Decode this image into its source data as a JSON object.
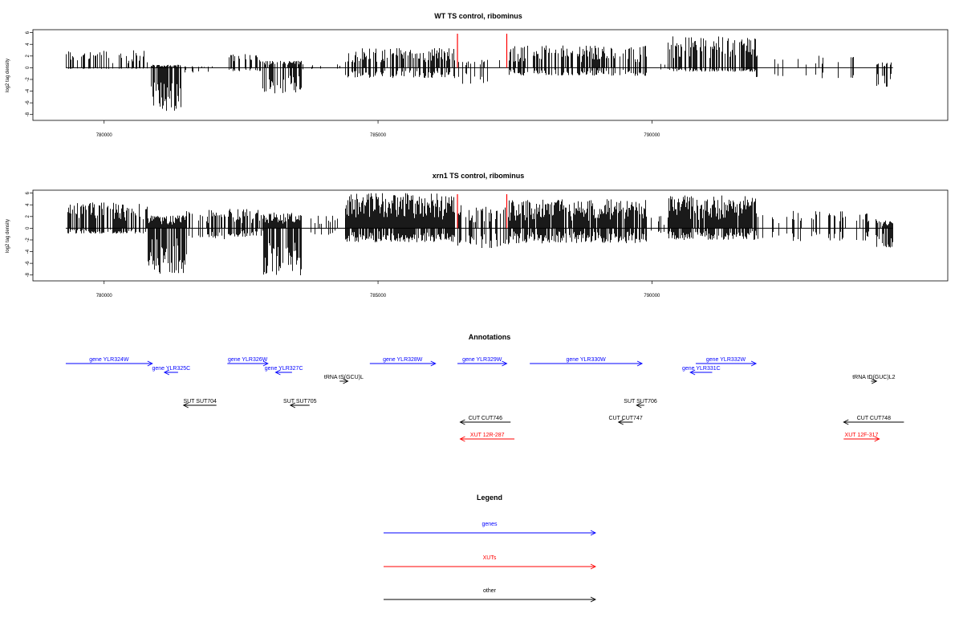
{
  "colors": {
    "gene": "#0000ff",
    "xut": "#ff0000",
    "other": "#000000",
    "marker": "#ff0000"
  },
  "chart_data": [
    {
      "type": "bar",
      "title": "WT TS control, ribominus",
      "xlabel": "",
      "ylabel": "log2 tag density",
      "xlim": [
        778700,
        795400
      ],
      "ylim": [
        -9,
        6.5
      ],
      "xticks": [
        780000,
        785000,
        790000
      ],
      "xtick_labels": [
        "780000",
        "785000",
        "790000"
      ],
      "yticks": [
        6,
        4,
        2,
        0,
        -2,
        -4,
        -6,
        -8
      ],
      "ytick_labels": [
        "6",
        "4",
        "2",
        "0",
        "-2",
        "-4",
        "-6",
        "-8"
      ],
      "marker_positions": [
        786450,
        787350
      ],
      "segments": [
        {
          "start": 779300,
          "end": 780800,
          "pos": 3.0,
          "neg": -0.2,
          "dens": 0.4
        },
        {
          "start": 780850,
          "end": 781400,
          "pos": 0.5,
          "neg": -7.4,
          "dens": 0.9
        },
        {
          "start": 781400,
          "end": 782200,
          "pos": 0.3,
          "neg": -1.0,
          "dens": 0.1
        },
        {
          "start": 782200,
          "end": 782900,
          "pos": 2.4,
          "neg": -0.6,
          "dens": 0.4
        },
        {
          "start": 782900,
          "end": 783600,
          "pos": 1.2,
          "neg": -4.4,
          "dens": 0.7
        },
        {
          "start": 783600,
          "end": 784400,
          "pos": 0.6,
          "neg": -0.3,
          "dens": 0.05
        },
        {
          "start": 784400,
          "end": 786400,
          "pos": 3.4,
          "neg": -1.8,
          "dens": 0.6
        },
        {
          "start": 786450,
          "end": 787400,
          "pos": 1.4,
          "neg": -2.8,
          "dens": 0.15
        },
        {
          "start": 787400,
          "end": 789900,
          "pos": 3.8,
          "neg": -1.4,
          "dens": 0.65
        },
        {
          "start": 789900,
          "end": 790300,
          "pos": 0.8,
          "neg": -0.4,
          "dens": 0.1
        },
        {
          "start": 790300,
          "end": 791900,
          "pos": 5.4,
          "neg": -0.7,
          "dens": 0.6
        },
        {
          "start": 791900,
          "end": 794100,
          "pos": 2.1,
          "neg": -1.8,
          "dens": 0.08
        },
        {
          "start": 794100,
          "end": 794400,
          "pos": 0.9,
          "neg": -3.3,
          "dens": 0.5
        }
      ]
    },
    {
      "type": "bar",
      "title": "xrn1 TS control, ribominus",
      "xlabel": "",
      "ylabel": "log2 tag density",
      "xlim": [
        778700,
        795400
      ],
      "ylim": [
        -9,
        6.5
      ],
      "xticks": [
        780000,
        785000,
        790000
      ],
      "xtick_labels": [
        "780000",
        "785000",
        "790000"
      ],
      "yticks": [
        6,
        4,
        2,
        0,
        -2,
        -4,
        -6,
        -8
      ],
      "ytick_labels": [
        "6",
        "4",
        "2",
        "0",
        "-2",
        "-4",
        "-6",
        "-8"
      ],
      "marker_positions": [
        786450,
        787350
      ],
      "segments": [
        {
          "start": 779300,
          "end": 780800,
          "pos": 4.4,
          "neg": -0.9,
          "dens": 0.75
        },
        {
          "start": 780800,
          "end": 781500,
          "pos": 2.2,
          "neg": -7.8,
          "dens": 1.0
        },
        {
          "start": 781500,
          "end": 782200,
          "pos": 3.2,
          "neg": -2.0,
          "dens": 0.4
        },
        {
          "start": 782200,
          "end": 782900,
          "pos": 3.3,
          "neg": -1.5,
          "dens": 0.7
        },
        {
          "start": 782900,
          "end": 783600,
          "pos": 2.7,
          "neg": -8.2,
          "dens": 0.95
        },
        {
          "start": 783600,
          "end": 784400,
          "pos": 2.2,
          "neg": -1.4,
          "dens": 0.25
        },
        {
          "start": 784400,
          "end": 786400,
          "pos": 6.0,
          "neg": -2.4,
          "dens": 1.0
        },
        {
          "start": 786450,
          "end": 787400,
          "pos": 4.0,
          "neg": -3.4,
          "dens": 0.55
        },
        {
          "start": 787400,
          "end": 789900,
          "pos": 5.0,
          "neg": -2.6,
          "dens": 0.95
        },
        {
          "start": 789900,
          "end": 790300,
          "pos": 2.2,
          "neg": -1.4,
          "dens": 0.3
        },
        {
          "start": 790300,
          "end": 791900,
          "pos": 5.6,
          "neg": -2.0,
          "dens": 0.95
        },
        {
          "start": 791900,
          "end": 794100,
          "pos": 3.0,
          "neg": -2.2,
          "dens": 0.25
        },
        {
          "start": 794100,
          "end": 794400,
          "pos": 1.3,
          "neg": -3.3,
          "dens": 0.6
        }
      ]
    }
  ],
  "annotations": {
    "title": "Annotations",
    "features": [
      {
        "label": "gene YLR324W",
        "type": "gene",
        "start": 779300,
        "end": 780880,
        "strand": "+",
        "row": 0
      },
      {
        "label": "gene YLR325C",
        "type": "gene",
        "start": 781100,
        "end": 781350,
        "strand": "-",
        "row": 1
      },
      {
        "label": "gene YLR326W",
        "type": "gene",
        "start": 782250,
        "end": 782990,
        "strand": "+",
        "row": 0
      },
      {
        "label": "gene YLR327C",
        "type": "gene",
        "start": 783130,
        "end": 783430,
        "strand": "-",
        "row": 1
      },
      {
        "label": "tRNA tS(GCU)L",
        "type": "other",
        "start": 784300,
        "end": 784450,
        "strand": "+",
        "row": 2
      },
      {
        "label": "gene YLR328W",
        "type": "gene",
        "start": 784850,
        "end": 786050,
        "strand": "+",
        "row": 0
      },
      {
        "label": "gene YLR329W",
        "type": "gene",
        "start": 786450,
        "end": 787350,
        "strand": "+",
        "row": 0
      },
      {
        "label": "gene YLR330W",
        "type": "gene",
        "start": 787770,
        "end": 789820,
        "strand": "+",
        "row": 0
      },
      {
        "label": "gene YLR331C",
        "type": "gene",
        "start": 790700,
        "end": 791100,
        "strand": "-",
        "row": 1
      },
      {
        "label": "gene YLR332W",
        "type": "gene",
        "start": 790800,
        "end": 791900,
        "strand": "+",
        "row": 0
      },
      {
        "label": "tRNA tD(GUC)L2",
        "type": "other",
        "start": 794000,
        "end": 794100,
        "strand": "+",
        "row": 2
      },
      {
        "label": "SUT SUT704",
        "type": "other",
        "start": 781450,
        "end": 782050,
        "strand": "-",
        "row": 3
      },
      {
        "label": "SUT SUT705",
        "type": "other",
        "start": 783400,
        "end": 783750,
        "strand": "-",
        "row": 3
      },
      {
        "label": "SUT SUT706",
        "type": "other",
        "start": 789720,
        "end": 789860,
        "strand": "-",
        "row": 3
      },
      {
        "label": "CUT CUT746",
        "type": "other",
        "start": 786500,
        "end": 787420,
        "strand": "-",
        "row": 4
      },
      {
        "label": "CUT CUT747",
        "type": "other",
        "start": 789390,
        "end": 789650,
        "strand": "-",
        "row": 4
      },
      {
        "label": "CUT CUT748",
        "type": "other",
        "start": 793500,
        "end": 794600,
        "strand": "-",
        "row": 4
      },
      {
        "label": "XUT 12R-287",
        "type": "xut",
        "start": 786500,
        "end": 787490,
        "strand": "-",
        "row": 5
      },
      {
        "label": "XUT 12F-317",
        "type": "xut",
        "start": 793500,
        "end": 794150,
        "strand": "+",
        "row": 5
      }
    ]
  },
  "legend": {
    "title": "Legend",
    "items": [
      {
        "label": "genes",
        "type": "gene"
      },
      {
        "label": "XUTs",
        "type": "xut"
      },
      {
        "label": "other",
        "type": "other"
      }
    ]
  }
}
